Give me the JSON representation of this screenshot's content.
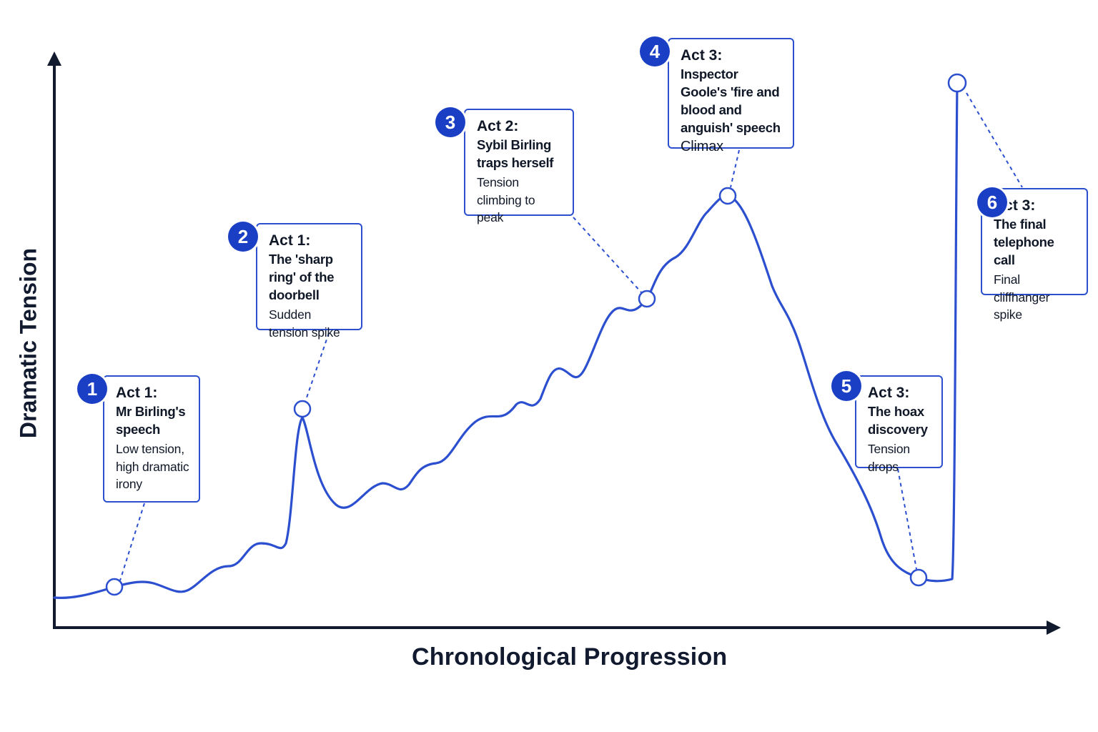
{
  "chart_data": {
    "type": "line",
    "xlabel": "Chronological Progression",
    "ylabel": "Dramatic Tension",
    "grid": false,
    "axis_ticks": false,
    "colors": {
      "curve": "#2b4fcf",
      "axis": "#111a2e",
      "badge": "#1a3fc4"
    },
    "annotations": [
      {
        "number": "1",
        "act": "Act 1:",
        "scene": "Mr Birling's speech",
        "note": "Low tension, high dramatic irony"
      },
      {
        "number": "2",
        "act": "Act 1:",
        "scene": "The 'sharp ring' of the doorbell",
        "note": "Sudden tension spike"
      },
      {
        "number": "3",
        "act": "Act 2:",
        "scene": "Sybil Birling traps herself",
        "note": "Tension climbing to peak"
      },
      {
        "number": "4",
        "act": "Act 3:",
        "scene": "Inspector Goole's 'fire and blood and anguish' speech",
        "note": "Climax"
      },
      {
        "number": "5",
        "act": "Act 3:",
        "scene": "The hoax discovery",
        "note": "Tension drops"
      },
      {
        "number": "6",
        "act": "Act 3:",
        "scene": "The final telephone call",
        "note": "Final cliffhanger spike"
      }
    ]
  }
}
